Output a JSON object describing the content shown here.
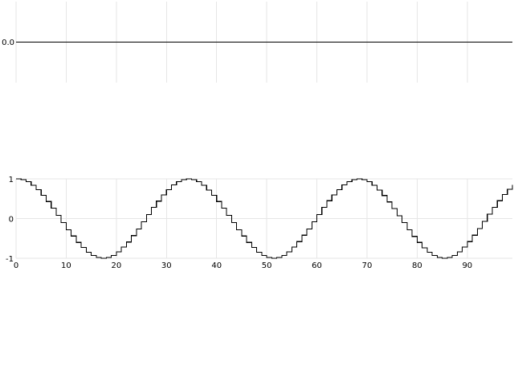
{
  "chart_data": [
    {
      "type": "line",
      "title": "",
      "xlabel": "",
      "ylabel": "",
      "xlim": [
        0,
        99
      ],
      "ylim": [
        -0.5,
        0.5
      ],
      "y_ticks": [
        "0.0"
      ],
      "x_ticks": [],
      "grid": true,
      "series": [
        {
          "x": [
            0,
            99
          ],
          "values": [
            0.0,
            0.0
          ]
        }
      ]
    },
    {
      "type": "line",
      "title": "",
      "xlabel": "",
      "ylabel": "",
      "xlim": [
        0,
        99
      ],
      "ylim": [
        -1,
        1
      ],
      "x_ticks": [
        "0",
        "10",
        "20",
        "30",
        "40",
        "50",
        "60",
        "70",
        "80",
        "90"
      ],
      "y_ticks": [
        "1",
        "0",
        "-1"
      ],
      "grid": true,
      "series": [
        {
          "x": [
            0,
            1,
            2,
            3,
            4,
            5,
            6,
            7,
            8,
            9,
            10,
            11,
            12,
            13,
            14,
            15,
            16,
            17,
            18,
            19,
            20,
            21,
            22,
            23,
            24,
            25,
            26,
            27,
            28,
            29,
            30,
            31,
            32,
            33,
            34,
            35,
            36,
            37,
            38,
            39,
            40,
            41,
            42,
            43,
            44,
            45,
            46,
            47,
            48,
            49,
            50,
            51,
            52,
            53,
            54,
            55,
            56,
            57,
            58,
            59,
            60,
            61,
            62,
            63,
            64,
            65,
            66,
            67,
            68,
            69,
            70,
            71,
            72,
            73,
            74,
            75,
            76,
            77,
            78,
            79,
            80,
            81,
            82,
            83,
            84,
            85,
            86,
            87,
            88,
            89,
            90,
            91,
            92,
            93,
            94,
            95,
            96,
            97,
            98,
            99
          ],
          "values": [
            1.0,
            0.98,
            0.93,
            0.84,
            0.73,
            0.59,
            0.43,
            0.26,
            0.08,
            -0.1,
            -0.28,
            -0.44,
            -0.6,
            -0.73,
            -0.85,
            -0.93,
            -0.98,
            -1.0,
            -0.98,
            -0.93,
            -0.84,
            -0.72,
            -0.59,
            -0.43,
            -0.26,
            -0.08,
            0.1,
            0.28,
            0.44,
            0.6,
            0.73,
            0.85,
            0.93,
            0.98,
            1.0,
            0.98,
            0.93,
            0.84,
            0.72,
            0.59,
            0.43,
            0.26,
            0.08,
            -0.1,
            -0.28,
            -0.44,
            -0.6,
            -0.73,
            -0.85,
            -0.93,
            -0.98,
            -1.0,
            -0.98,
            -0.93,
            -0.84,
            -0.72,
            -0.58,
            -0.42,
            -0.26,
            -0.08,
            0.1,
            0.28,
            0.45,
            0.6,
            0.73,
            0.85,
            0.93,
            0.98,
            1.0,
            0.98,
            0.93,
            0.84,
            0.72,
            0.58,
            0.42,
            0.25,
            0.07,
            -0.1,
            -0.28,
            -0.45,
            -0.6,
            -0.74,
            -0.85,
            -0.93,
            -0.98,
            -1.0,
            -0.98,
            -0.93,
            -0.84,
            -0.72,
            -0.58,
            -0.42,
            -0.25,
            -0.07,
            0.11,
            0.28,
            0.45,
            0.61,
            0.74,
            0.85
          ]
        }
      ]
    }
  ]
}
